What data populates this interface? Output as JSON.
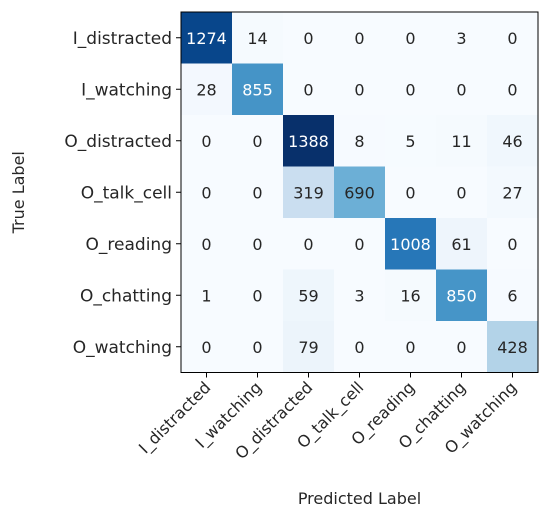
{
  "chart_data": {
    "type": "heatmap",
    "title": "",
    "xlabel": "Predicted Label",
    "ylabel": "True Label",
    "x_categories": [
      "I_distracted",
      "I_watching",
      "O_distracted",
      "O_talk_cell",
      "O_reading",
      "O_chatting",
      "O_watching"
    ],
    "y_categories": [
      "I_distracted",
      "I_watching",
      "O_distracted",
      "O_talk_cell",
      "O_reading",
      "O_chatting",
      "O_watching"
    ],
    "values": [
      [
        1274,
        14,
        0,
        0,
        0,
        3,
        0
      ],
      [
        28,
        855,
        0,
        0,
        0,
        0,
        0
      ],
      [
        0,
        0,
        1388,
        8,
        5,
        11,
        46
      ],
      [
        0,
        0,
        319,
        690,
        0,
        0,
        27
      ],
      [
        0,
        0,
        0,
        0,
        1008,
        61,
        0
      ],
      [
        1,
        0,
        59,
        3,
        16,
        850,
        6
      ],
      [
        0,
        0,
        79,
        0,
        0,
        0,
        428
      ]
    ],
    "colormap": [
      "#f7fbff",
      "#deebf7",
      "#c6dbef",
      "#9ecae1",
      "#6baed6",
      "#4292c6",
      "#2171b5",
      "#08519c",
      "#08306b"
    ],
    "colorbar": false,
    "grid": false
  }
}
